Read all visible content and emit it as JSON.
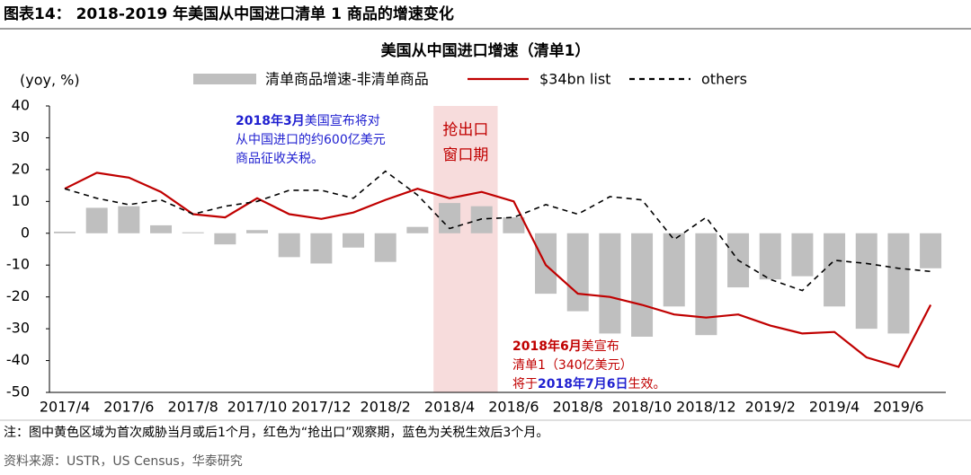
{
  "header": {
    "title": "图表14： 2018-2019 年美国从中国进口清单 1 商品的增速变化"
  },
  "chart_data": {
    "type": "bar_line",
    "title": "美国从中国进口增速（清单1）",
    "y_label": "(yoy, %)",
    "categories": [
      "2017/4",
      null,
      "2017/6",
      null,
      "2017/8",
      null,
      "2017/10",
      null,
      "2017/12",
      null,
      "2018/2",
      null,
      "2018/4",
      null,
      "2018/6",
      null,
      "2018/8",
      null,
      "2018/10",
      null,
      "2018/12",
      null,
      "2019/2",
      null,
      "2019/4",
      null,
      "2019/6",
      null
    ],
    "series": [
      {
        "name": "清单商品增速-非清单商品",
        "kind": "bar",
        "color": "#bfbfbf",
        "values": [
          0.5,
          8,
          8.5,
          2.5,
          0.3,
          -3.5,
          1,
          -7.5,
          -9.5,
          -4.5,
          -9,
          2,
          9.5,
          8.5,
          5,
          -19,
          -24.5,
          -31.5,
          -32.5,
          -23,
          -32,
          -17,
          -14.5,
          -13.5,
          -23,
          -30,
          -31.5,
          -11
        ]
      },
      {
        "name": "$34bn list",
        "kind": "line",
        "color": "#c00000",
        "values": [
          14,
          19,
          17.5,
          13,
          6,
          5,
          11,
          6,
          4.5,
          6.5,
          10.5,
          14,
          11,
          13,
          10,
          -10,
          -19,
          -20,
          -22.5,
          -25.5,
          -26.5,
          -25.5,
          -29,
          -31.5,
          -31,
          -39,
          -42,
          -22.5
        ]
      },
      {
        "name": "others",
        "kind": "dashed",
        "color": "#000000",
        "values": [
          14,
          11,
          9,
          10.5,
          6,
          8.5,
          10,
          13.5,
          13.5,
          11,
          19.5,
          12,
          1.5,
          4.5,
          5,
          9,
          6,
          11.5,
          10.5,
          -2,
          5,
          -8.5,
          -14.5,
          -18,
          -8.5,
          -9.5,
          -11,
          -12
        ]
      }
    ],
    "ylim": [
      -50,
      40
    ],
    "yticks": [
      40,
      30,
      20,
      10,
      0,
      -10,
      -20,
      -30,
      -40,
      -50
    ],
    "grid": false,
    "highlight": {
      "start": 12,
      "end": 13,
      "color": "#f7dcdc",
      "label": [
        "抢出口",
        "窗口期"
      ],
      "label_color": "#c00000"
    },
    "annotations": [
      {
        "color": "#1f1fd0",
        "lines": [
          [
            {
              "text": "2018年3月",
              "bold": true
            },
            {
              "text": "美国宣布将对",
              "bold": false
            }
          ],
          [
            {
              "text": "从中国进口的约600亿美元",
              "bold": false
            }
          ],
          [
            {
              "text": "商品征收关税。",
              "bold": false
            }
          ]
        ]
      },
      {
        "color": "#c00000",
        "lines": [
          [
            {
              "text": "2018年6月",
              "bold": true
            },
            {
              "text": "美宣布",
              "bold": false
            }
          ],
          [
            {
              "text": "清单1（340亿美元）",
              "bold": false
            }
          ],
          [
            {
              "text": "将于",
              "bold": false
            },
            {
              "text": "2018年7月6日",
              "bold": true,
              "color": "#1f1fd0"
            },
            {
              "text": "生效。",
              "bold": false
            }
          ]
        ]
      }
    ]
  },
  "footer": {
    "note": "注：图中黄色区域为首次威胁当月或后1个月，红色为“抢出口”观察期，蓝色为关税生效后3个月。",
    "source": "资料来源：USTR，US Census，华泰研究"
  }
}
